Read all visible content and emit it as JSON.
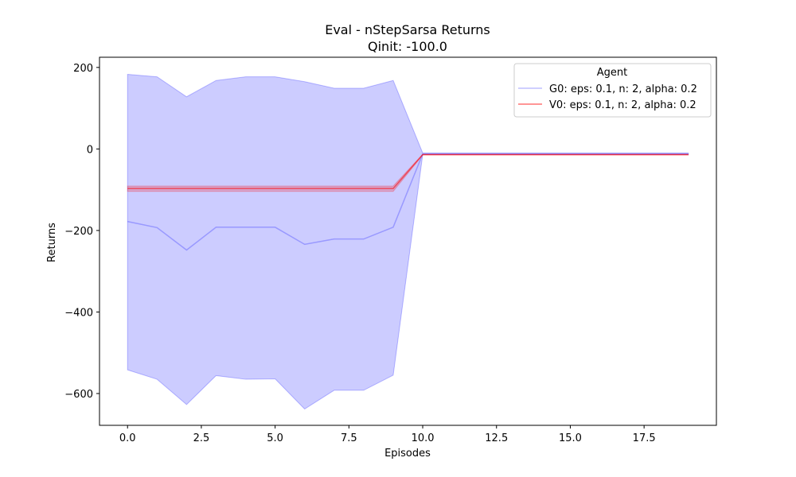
{
  "chart_data": {
    "type": "line",
    "title": "Eval - nStepSarsa Returns",
    "subtitle": "Qinit: -100.0",
    "xlabel": "Episodes",
    "ylabel": "Returns",
    "xlim": [
      -0.95,
      19.95
    ],
    "ylim": [
      -678,
      225
    ],
    "x_ticks": [
      0,
      2.5,
      5,
      7.5,
      10,
      12.5,
      15,
      17.5
    ],
    "x_tick_labels": [
      "0.0",
      "2.5",
      "5.0",
      "7.5",
      "10.0",
      "12.5",
      "15.0",
      "17.5"
    ],
    "y_ticks": [
      200,
      0,
      -200,
      -400,
      -600
    ],
    "y_tick_labels": [
      "200",
      "0",
      "−200",
      "−400",
      "−600"
    ],
    "grid": false,
    "legend": {
      "title": "Agent",
      "placement": "top-right"
    },
    "x": [
      0,
      1,
      2,
      3,
      4,
      5,
      6,
      7,
      8,
      9,
      10,
      11,
      12,
      13,
      14,
      15,
      16,
      17,
      18,
      19
    ],
    "series": [
      {
        "name": "G0: eps: 0.1, n: 2, alpha: 0.2",
        "color": "#0000ff",
        "upper": [
          183,
          177,
          128,
          168,
          177,
          177,
          165,
          149,
          149,
          168,
          -10,
          -10,
          -10,
          -10,
          -10,
          -10,
          -10,
          -10,
          -10,
          -10
        ],
        "mean": [
          -178,
          -193,
          -248,
          -192,
          -192,
          -192,
          -234,
          -221,
          -221,
          -192,
          -12,
          -12,
          -12,
          -12,
          -12,
          -12,
          -12,
          -12,
          -12,
          -12
        ],
        "lower": [
          -542,
          -565,
          -627,
          -556,
          -565,
          -564,
          -638,
          -592,
          -592,
          -555,
          -14,
          -14,
          -14,
          -14,
          -14,
          -14,
          -14,
          -14,
          -14,
          -14
        ]
      },
      {
        "name": "V0: eps: 0.1, n: 2, alpha: 0.2",
        "color": "#ff0000",
        "upper": [
          -91,
          -91,
          -91,
          -91,
          -91,
          -91,
          -91,
          -91,
          -91,
          -91,
          -13,
          -13,
          -13,
          -13,
          -13,
          -13,
          -13,
          -13,
          -13,
          -13
        ],
        "mean": [
          -97,
          -97,
          -97,
          -97,
          -97,
          -97,
          -97,
          -97,
          -97,
          -97,
          -14,
          -14,
          -14,
          -14,
          -14,
          -14,
          -14,
          -14,
          -14,
          -14
        ],
        "lower": [
          -104,
          -104,
          -104,
          -104,
          -104,
          -104,
          -104,
          -104,
          -104,
          -104,
          -15,
          -15,
          -15,
          -15,
          -15,
          -15,
          -15,
          -15,
          -15,
          -15
        ]
      }
    ]
  }
}
